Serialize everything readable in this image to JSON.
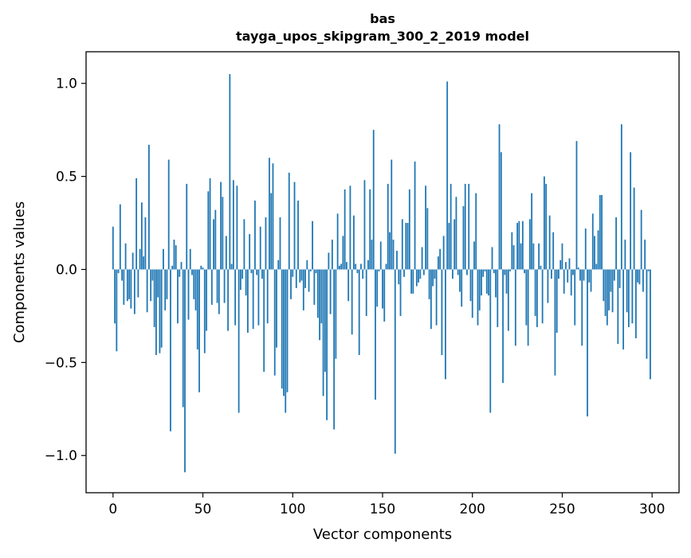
{
  "chart_data": {
    "type": "bar",
    "title_line1": "bas",
    "title_line2": "tayga_upos_skipgram_300_2_2019 model",
    "xlabel": "Vector components",
    "ylabel": "Components values",
    "xlim": [
      -15,
      315
    ],
    "ylim": [
      -1.2,
      1.17
    ],
    "x_ticks": [
      0,
      50,
      100,
      150,
      200,
      250,
      300
    ],
    "x_tick_labels": [
      "0",
      "50",
      "100",
      "150",
      "200",
      "250",
      "300"
    ],
    "y_ticks": [
      -1.0,
      -0.5,
      0.0,
      0.5,
      1.0
    ],
    "y_tick_labels": [
      "−1.0",
      "−0.5",
      "0.0",
      "0.5",
      "1.0"
    ],
    "bar_color": "#1f77b4",
    "values": [
      0.23,
      -0.29,
      -0.44,
      -0.02,
      0.35,
      -0.06,
      -0.19,
      0.14,
      -0.17,
      -0.16,
      -0.21,
      0.09,
      -0.24,
      0.49,
      -0.15,
      0.11,
      0.36,
      0.07,
      0.28,
      -0.23,
      0.67,
      -0.17,
      -0.06,
      -0.31,
      -0.46,
      -0.15,
      -0.45,
      -0.42,
      0.11,
      -0.22,
      -0.16,
      0.59,
      -0.87,
      0.02,
      0.16,
      0.13,
      -0.29,
      -0.04,
      0.04,
      -0.74,
      -1.09,
      0.46,
      -0.27,
      0.11,
      -0.03,
      -0.16,
      -0.22,
      -0.43,
      -0.66,
      0.02,
      0.01,
      -0.45,
      -0.33,
      0.42,
      0.49,
      -0.19,
      0.27,
      0.32,
      -0.18,
      -0.24,
      0.47,
      0.39,
      -0.18,
      0.18,
      -0.33,
      1.05,
      0.03,
      0.48,
      -0.3,
      0.45,
      -0.77,
      -0.11,
      -0.05,
      0.27,
      -0.14,
      -0.34,
      0.19,
      -0.02,
      -0.32,
      0.37,
      -0.03,
      -0.3,
      0.23,
      -0.05,
      -0.55,
      0.28,
      -0.29,
      0.6,
      0.41,
      0.57,
      -0.57,
      -0.42,
      0.05,
      0.28,
      -0.64,
      -0.68,
      -0.77,
      -0.66,
      0.52,
      -0.16,
      -0.04,
      0.47,
      -0.1,
      0.37,
      -0.07,
      -0.06,
      -0.22,
      -0.1,
      0.05,
      -0.12,
      -0.01,
      0.26,
      -0.19,
      -0.02,
      -0.26,
      -0.38,
      -0.29,
      -0.68,
      -0.55,
      -0.81,
      0.09,
      -0.24,
      0.16,
      -0.86,
      -0.48,
      0.3,
      0.02,
      0.03,
      0.18,
      0.43,
      0.04,
      -0.17,
      0.45,
      -0.35,
      0.29,
      0.03,
      -0.02,
      -0.46,
      0.03,
      -0.05,
      0.48,
      -0.25,
      0.05,
      0.43,
      0.16,
      0.75,
      -0.7,
      -0.2,
      -0.01,
      0.15,
      -0.21,
      -0.28,
      0.03,
      0.46,
      0.2,
      0.59,
      0.16,
      -0.99,
      0.1,
      -0.08,
      -0.25,
      0.27,
      -0.04,
      0.25,
      0.25,
      0.43,
      -0.13,
      -0.13,
      0.58,
      -0.09,
      -0.07,
      -0.05,
      0.12,
      -0.03,
      0.45,
      0.33,
      -0.16,
      -0.32,
      -0.09,
      -0.05,
      -0.3,
      0.07,
      0.11,
      -0.46,
      0.18,
      -0.59,
      1.01,
      0.25,
      0.46,
      -0.05,
      0.27,
      0.39,
      -0.03,
      -0.12,
      -0.2,
      0.34,
      0.46,
      -0.03,
      0.46,
      -0.17,
      -0.26,
      0.15,
      0.41,
      -0.3,
      -0.22,
      -0.14,
      -0.04,
      -0.01,
      -0.13,
      -0.14,
      -0.77,
      0.12,
      -0.02,
      -0.15,
      -0.31,
      0.78,
      0.63,
      -0.61,
      -0.03,
      -0.13,
      -0.33,
      -0.01,
      0.2,
      0.13,
      -0.41,
      0.25,
      0.26,
      0.14,
      0.26,
      -0.02,
      -0.3,
      -0.41,
      0.27,
      0.41,
      0.14,
      -0.25,
      -0.31,
      0.14,
      0.02,
      -0.29,
      0.5,
      0.46,
      -0.18,
      0.29,
      -0.05,
      0.2,
      -0.57,
      -0.34,
      -0.05,
      0.05,
      0.14,
      -0.13,
      0.04,
      -0.07,
      0.06,
      -0.14,
      -0.03,
      -0.3,
      0.69,
      0.01,
      -0.06,
      -0.41,
      -0.06,
      0.22,
      -0.79,
      -0.07,
      -0.12,
      0.3,
      0.18,
      0.03,
      0.21,
      0.4,
      0.4,
      -0.17,
      -0.25,
      -0.3,
      -0.22,
      -0.12,
      -0.23,
      -0.06,
      0.28,
      -0.4,
      -0.1,
      0.78,
      -0.43,
      0.16,
      -0.23,
      -0.31,
      0.63,
      -0.29,
      0.44,
      -0.37,
      -0.07,
      -0.08,
      0.32,
      -0.12,
      0.16,
      -0.48,
      -0.01,
      -0.59
    ]
  }
}
